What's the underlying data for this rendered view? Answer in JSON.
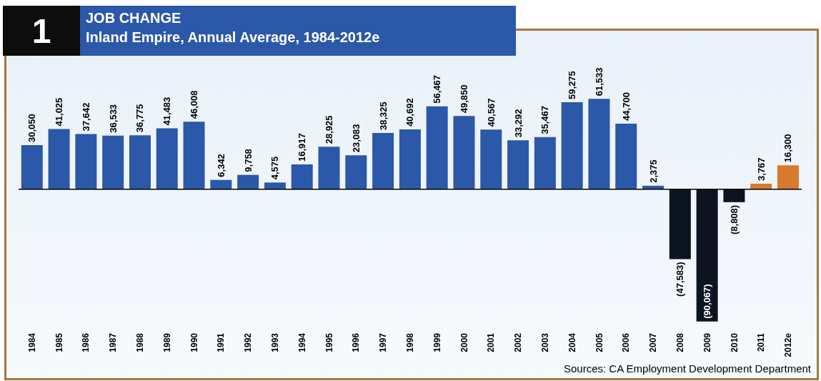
{
  "chart_data": {
    "type": "bar",
    "title": "JOB CHANGE",
    "subtitle": "Inland Empire, Annual Average, 1984-2012e",
    "annotations": [
      "1",
      "Sources:  CA Employment Development Department"
    ],
    "categories": [
      "1984",
      "1985",
      "1986",
      "1987",
      "1988",
      "1989",
      "1990",
      "1991",
      "1992",
      "1993",
      "1994",
      "1995",
      "1996",
      "1997",
      "1998",
      "1999",
      "2000",
      "2001",
      "2002",
      "2003",
      "2004",
      "2005",
      "2006",
      "2007",
      "2008",
      "2009",
      "2010",
      "2011",
      "2012e"
    ],
    "values": [
      30050,
      41025,
      37642,
      36533,
      36775,
      41483,
      46008,
      6342,
      9758,
      4575,
      16917,
      28925,
      23083,
      38325,
      40692,
      56467,
      49850,
      40567,
      33292,
      35467,
      59275,
      61533,
      44700,
      2375,
      -47583,
      -90067,
      -8808,
      3767,
      16300
    ],
    "value_labels": [
      "30,050",
      "41,025",
      "37,642",
      "36,533",
      "36,775",
      "41,483",
      "46,008",
      "6,342",
      "9,758",
      "4,575",
      "16,917",
      "28,925",
      "23,083",
      "38,325",
      "40,692",
      "56,467",
      "49,850",
      "40,567",
      "33,292",
      "35,467",
      "59,275",
      "61,533",
      "44,700",
      "2,375",
      "(47,583)",
      "(90,067)",
      "(8,808)",
      "3,767",
      "16,300"
    ],
    "colors": [
      "#2b58a8",
      "#2b58a8",
      "#2b58a8",
      "#2b58a8",
      "#2b58a8",
      "#2b58a8",
      "#2b58a8",
      "#2b58a8",
      "#2b58a8",
      "#2b58a8",
      "#2b58a8",
      "#2b58a8",
      "#2b58a8",
      "#2b58a8",
      "#2b58a8",
      "#2b58a8",
      "#2b58a8",
      "#2b58a8",
      "#2b58a8",
      "#2b58a8",
      "#2b58a8",
      "#2b58a8",
      "#2b58a8",
      "#2b58a8",
      "#0b1420",
      "#0b1420",
      "#0b1420",
      "#d7792f",
      "#d7792f"
    ],
    "data_labels": false
  }
}
